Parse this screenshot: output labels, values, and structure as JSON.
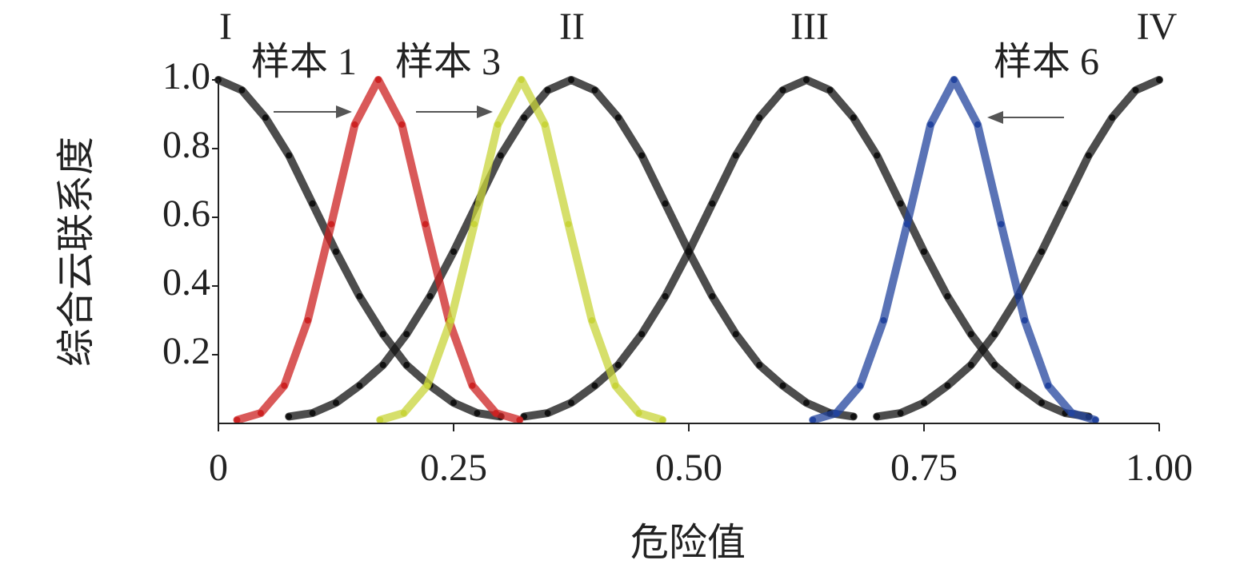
{
  "chart_data": {
    "type": "scatter",
    "x_label": "危险值",
    "y_label": "综合云联系度",
    "xlim": [
      0,
      1
    ],
    "ylim": [
      0,
      1
    ],
    "xticks": [
      0,
      0.25,
      {
        "value": 0.5,
        "label": "0.50"
      },
      0.75,
      {
        "value": 1,
        "label": "1.00"
      }
    ],
    "yticks": [
      0.2,
      0.4,
      0.6,
      0.8,
      {
        "value": 1,
        "label": "1.0"
      }
    ],
    "grade_labels": [
      "I",
      "II",
      "III",
      "IV"
    ],
    "annotations": [
      "样本 1",
      "样本 3",
      "样本 6"
    ],
    "series": [
      {
        "color": "#111111",
        "x": [
          0,
          0.025,
          0.05,
          0.075,
          0.1,
          0.125,
          0.15,
          0.175,
          0.2,
          0.225,
          0.25,
          0.275,
          0.3
        ],
        "values": [
          1,
          0.97,
          0.89,
          0.78,
          0.64,
          0.5,
          0.37,
          0.26,
          0.17,
          0.11,
          0.06,
          0.03,
          0.02
        ]
      },
      {
        "color": "#111111",
        "x": [
          0.075,
          0.1,
          0.125,
          0.15,
          0.175,
          0.2,
          0.225,
          0.25,
          0.275,
          0.3,
          0.325,
          0.35,
          0.375,
          0.4,
          0.425,
          0.45,
          0.475,
          0.5,
          0.525,
          0.55,
          0.575,
          0.6,
          0.625,
          0.65,
          0.675
        ],
        "values": [
          0.02,
          0.03,
          0.06,
          0.11,
          0.17,
          0.26,
          0.37,
          0.5,
          0.64,
          0.78,
          0.89,
          0.97,
          1,
          0.97,
          0.89,
          0.78,
          0.64,
          0.5,
          0.37,
          0.26,
          0.17,
          0.11,
          0.06,
          0.03,
          0.02
        ]
      },
      {
        "color": "#111111",
        "x": [
          0.325,
          0.35,
          0.375,
          0.4,
          0.425,
          0.45,
          0.475,
          0.5,
          0.525,
          0.55,
          0.575,
          0.6,
          0.625,
          0.65,
          0.675,
          0.7,
          0.725,
          0.75,
          0.775,
          0.8,
          0.825,
          0.85,
          0.875,
          0.9,
          0.925
        ],
        "values": [
          0.02,
          0.03,
          0.06,
          0.11,
          0.17,
          0.26,
          0.37,
          0.5,
          0.64,
          0.78,
          0.89,
          0.97,
          1,
          0.97,
          0.89,
          0.78,
          0.64,
          0.5,
          0.37,
          0.26,
          0.17,
          0.11,
          0.06,
          0.03,
          0.02
        ]
      },
      {
        "color": "#111111",
        "x": [
          0.7,
          0.725,
          0.75,
          0.775,
          0.8,
          0.825,
          0.85,
          0.875,
          0.9,
          0.925,
          0.95,
          0.975,
          1
        ],
        "values": [
          0.02,
          0.03,
          0.06,
          0.11,
          0.17,
          0.26,
          0.37,
          0.5,
          0.64,
          0.78,
          0.89,
          0.97,
          1
        ]
      },
      {
        "color": "#cc2222",
        "x": [
          0.02,
          0.045,
          0.07,
          0.095,
          0.12,
          0.145,
          0.17,
          0.195,
          0.22,
          0.245,
          0.27,
          0.295,
          0.32
        ],
        "values": [
          0.01,
          0.03,
          0.11,
          0.3,
          0.58,
          0.87,
          1,
          0.87,
          0.58,
          0.3,
          0.11,
          0.03,
          0.01
        ]
      },
      {
        "color": "#c8d43a",
        "x": [
          0.172,
          0.197,
          0.222,
          0.247,
          0.272,
          0.297,
          0.322,
          0.347,
          0.372,
          0.397,
          0.422,
          0.447,
          0.472
        ],
        "values": [
          0.01,
          0.03,
          0.11,
          0.3,
          0.58,
          0.87,
          1,
          0.87,
          0.58,
          0.3,
          0.11,
          0.03,
          0.01
        ]
      },
      {
        "color": "#23449e",
        "x": [
          0.632,
          0.657,
          0.682,
          0.707,
          0.732,
          0.757,
          0.782,
          0.807,
          0.832,
          0.857,
          0.882,
          0.907,
          0.932
        ],
        "values": [
          0.01,
          0.03,
          0.11,
          0.3,
          0.58,
          0.87,
          1,
          0.87,
          0.58,
          0.3,
          0.11,
          0.03,
          0.01
        ]
      }
    ]
  }
}
